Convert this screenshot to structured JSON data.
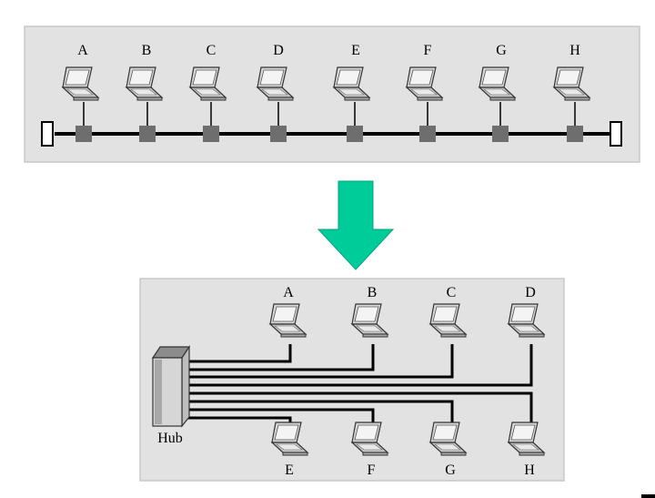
{
  "bus_panel": {
    "nodes": [
      {
        "label": "A"
      },
      {
        "label": "B"
      },
      {
        "label": "C"
      },
      {
        "label": "D"
      },
      {
        "label": "E"
      },
      {
        "label": "F"
      },
      {
        "label": "G"
      },
      {
        "label": "H"
      }
    ]
  },
  "arrow": {
    "icon": "down-arrow-icon",
    "color": "#00cc99"
  },
  "hub_panel": {
    "hub_label": "Hub",
    "top_nodes": [
      {
        "label": "A"
      },
      {
        "label": "B"
      },
      {
        "label": "C"
      },
      {
        "label": "D"
      }
    ],
    "bottom_nodes": [
      {
        "label": "E"
      },
      {
        "label": "F"
      },
      {
        "label": "G"
      },
      {
        "label": "H"
      }
    ]
  },
  "colors": {
    "panel_bg": "#e2e2e2",
    "panel_border": "#c8c8c8",
    "line": "#000000",
    "tap": "#6e6e6e"
  }
}
